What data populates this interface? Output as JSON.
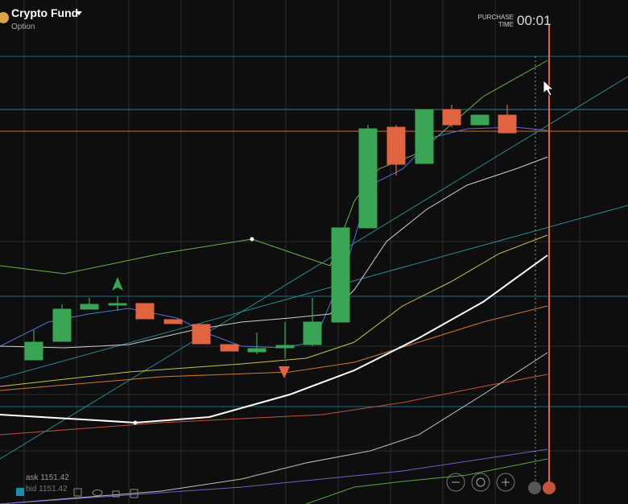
{
  "header": {
    "title": "Crypto Fund",
    "subtitle": "Option"
  },
  "purchase": {
    "label_line1": "PURCHASE",
    "label_line2": "TIME",
    "time": "00:01"
  },
  "quote": {
    "ask": "ask 1151.42",
    "bid": "bid 1151.42"
  }
}
